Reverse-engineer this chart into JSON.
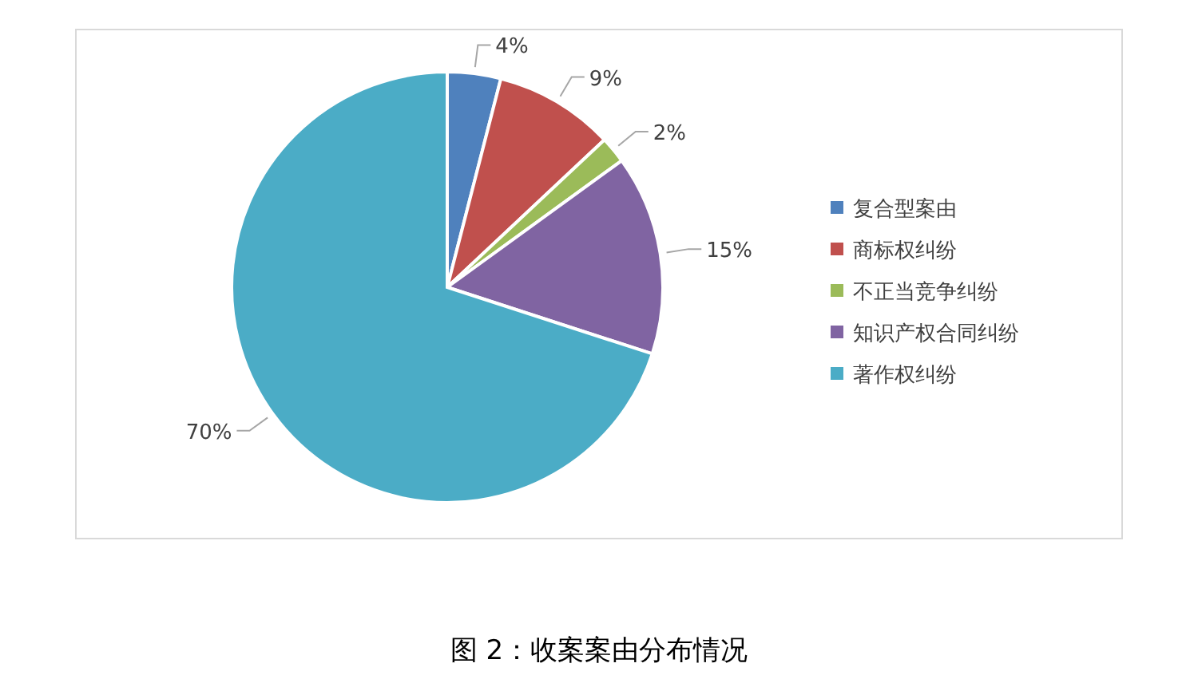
{
  "chart_data": {
    "type": "pie",
    "title": "图 2：收案案由分布情况",
    "categories": [
      "复合型案由",
      "商标权纠纷",
      "不正当竞争纠纷",
      "知识产权合同纠纷",
      "著作权纠纷"
    ],
    "values": [
      4,
      9,
      2,
      15,
      70
    ],
    "value_labels": [
      "4%",
      "9%",
      "2%",
      "15%",
      "70%"
    ],
    "colors": [
      "#4f81bd",
      "#c0504d",
      "#9bbb59",
      "#8064a2",
      "#4bacc6"
    ],
    "legend": "right"
  }
}
